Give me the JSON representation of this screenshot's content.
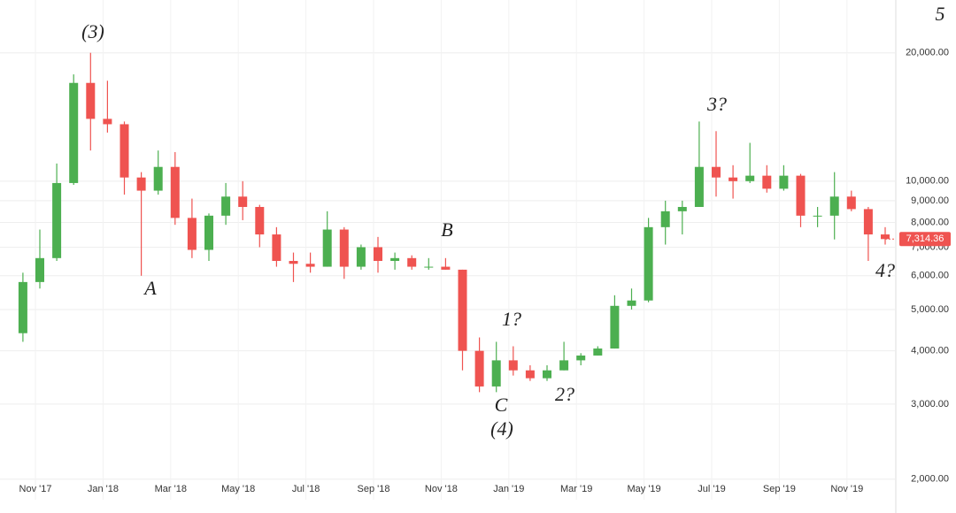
{
  "chart_data": {
    "type": "candlestick",
    "log_scale": true,
    "grid": true,
    "up_color": "#4caf50",
    "down_color": "#ef5350",
    "categories": [
      null,
      "Nov '17",
      null,
      null,
      null,
      "Jan '18",
      null,
      null,
      null,
      "Mar '18",
      null,
      null,
      null,
      "May '18",
      null,
      null,
      null,
      "Jul '18",
      null,
      null,
      null,
      "Sep '18",
      null,
      null,
      null,
      "Nov '18",
      null,
      null,
      null,
      "Jan '19",
      null,
      null,
      null,
      "Mar '19",
      null,
      null,
      null,
      "May '19",
      null,
      null,
      null,
      "Jul '19",
      null,
      null,
      null,
      "Sep '19",
      null,
      null,
      null,
      "Nov '19",
      null,
      null
    ],
    "open": [
      4400,
      5800,
      6600,
      9900,
      17000,
      14000,
      13600,
      10200,
      9500,
      10800,
      8200,
      6900,
      8300,
      9200,
      8700,
      7500,
      6500,
      6400,
      6300,
      7700,
      6300,
      7000,
      6500,
      6600,
      6300,
      6300,
      6200,
      4000,
      3300,
      3800,
      3600,
      3450,
      3600,
      3800,
      3900,
      4050,
      5100,
      5250,
      7800,
      8500,
      8700,
      10800,
      10200,
      10000,
      10300,
      9600,
      10300,
      8300,
      8300,
      9200,
      8600,
      7500
    ],
    "high": [
      6100,
      7700,
      11000,
      17800,
      20000,
      17200,
      13800,
      10500,
      11800,
      11700,
      9100,
      8400,
      9900,
      10000,
      8800,
      7800,
      6800,
      6800,
      8500,
      7800,
      7100,
      7400,
      6800,
      6700,
      6600,
      6600,
      6200,
      4300,
      4200,
      4100,
      3700,
      3700,
      4200,
      3950,
      4100,
      5400,
      5600,
      8200,
      9000,
      9000,
      13800,
      13100,
      10900,
      12300,
      10900,
      10900,
      10400,
      8700,
      10500,
      9500,
      8700,
      7800
    ],
    "low": [
      4200,
      5600,
      6500,
      9800,
      11800,
      13000,
      9300,
      6000,
      9300,
      7900,
      6600,
      6500,
      7900,
      8100,
      7000,
      6300,
      5800,
      6100,
      6300,
      5900,
      6200,
      6100,
      6200,
      6200,
      6200,
      6200,
      3600,
      3200,
      3200,
      3500,
      3400,
      3400,
      3600,
      3700,
      3900,
      4050,
      5000,
      5200,
      7100,
      7500,
      8700,
      9200,
      9100,
      9900,
      9400,
      9500,
      7800,
      7800,
      7300,
      8500,
      6500,
      7100
    ],
    "close": [
      5800,
      6600,
      9900,
      17000,
      14000,
      13600,
      10200,
      9500,
      10800,
      8200,
      6900,
      8300,
      9200,
      8700,
      7500,
      6500,
      6400,
      6300,
      7700,
      6300,
      7000,
      6500,
      6600,
      6300,
      6300,
      6200,
      4000,
      3300,
      3800,
      3600,
      3450,
      3600,
      3800,
      3900,
      4050,
      5100,
      5250,
      7800,
      8500,
      8700,
      10800,
      10200,
      10000,
      10300,
      9600,
      10300,
      8300,
      8300,
      9200,
      8600,
      7500,
      7314.36
    ],
    "last_price": {
      "value": 7314.36,
      "label": "7,314.36"
    },
    "ylim": [
      1790,
      26600
    ],
    "yticks": [
      {
        "value": 2000,
        "label": "2,000.00"
      },
      {
        "value": 3000,
        "label": "3,000.00"
      },
      {
        "value": 4000,
        "label": "4,000.00"
      },
      {
        "value": 5000,
        "label": "5,000.00"
      },
      {
        "value": 6000,
        "label": "6,000.00"
      },
      {
        "value": 7000,
        "label": "7,000.00"
      },
      {
        "value": 8000,
        "label": "8,000.00"
      },
      {
        "value": 9000,
        "label": "9,000.00"
      },
      {
        "value": 10000,
        "label": "10,000.00"
      },
      {
        "value": 20000,
        "label": "20,000.00"
      }
    ],
    "annotations": [
      "(3)",
      "A",
      "B",
      "C",
      "(4)",
      "1?",
      "2?",
      "3?",
      "4?",
      "5"
    ]
  }
}
